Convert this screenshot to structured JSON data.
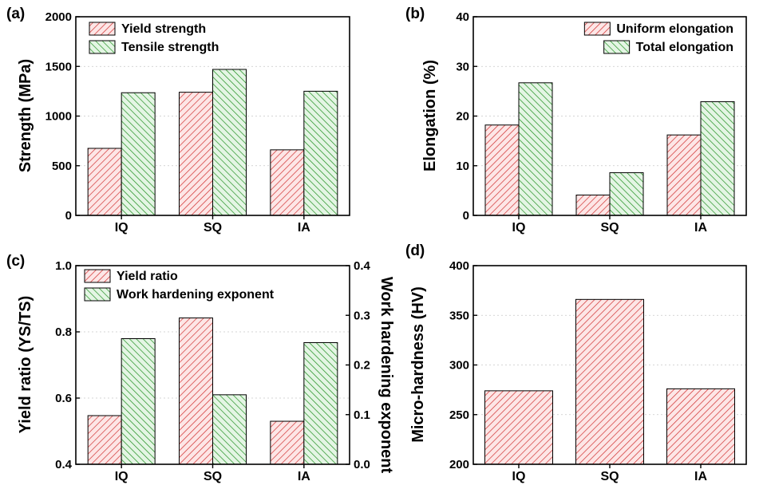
{
  "colors": {
    "red_hatch": "#d03030",
    "red_fill": "#fde6e6",
    "green_hatch": "#1f8f1f",
    "green_fill": "#e4f5e4",
    "grid": "#c8c8c8",
    "axis": "#000000"
  },
  "chart_data": [
    {
      "panel_label": "(a)",
      "type": "bar",
      "categories": [
        "IQ",
        "SQ",
        "IA"
      ],
      "ylabel": "Strength (MPa)",
      "ylim": [
        0,
        2000
      ],
      "yticks": [
        0,
        500,
        1000,
        1500,
        2000
      ],
      "ytick_labels": [
        "0",
        "500",
        "1000",
        "1500",
        "2000"
      ],
      "grid": true,
      "legend_position": "top-left",
      "series": [
        {
          "name": "Yield strength",
          "color": "red",
          "values": [
            675,
            1240,
            660
          ]
        },
        {
          "name": "Tensile strength",
          "color": "green",
          "values": [
            1235,
            1470,
            1250
          ]
        }
      ]
    },
    {
      "panel_label": "(b)",
      "type": "bar",
      "categories": [
        "IQ",
        "SQ",
        "IA"
      ],
      "ylabel": "Elongation (%)",
      "ylim": [
        0,
        40
      ],
      "yticks": [
        0,
        10,
        20,
        30,
        40
      ],
      "ytick_labels": [
        "0",
        "10",
        "20",
        "30",
        "40"
      ],
      "grid": true,
      "legend_position": "top-right",
      "series": [
        {
          "name": "Uniform elongation",
          "color": "red",
          "values": [
            18.2,
            4.1,
            16.2
          ]
        },
        {
          "name": "Total elongation",
          "color": "green",
          "values": [
            26.7,
            8.6,
            22.9
          ]
        }
      ]
    },
    {
      "panel_label": "(c)",
      "type": "bar",
      "categories": [
        "IQ",
        "SQ",
        "IA"
      ],
      "ylabel": "Yield ratio (YS/TS)",
      "ylim": [
        0.4,
        1.0
      ],
      "yticks": [
        0.4,
        0.6,
        0.8,
        1.0
      ],
      "ytick_labels": [
        "0.4",
        "0.6",
        "0.8",
        "1.0"
      ],
      "y2label": "Work hardening exponent",
      "y2lim": [
        0.0,
        0.4
      ],
      "y2ticks": [
        0.0,
        0.1,
        0.2,
        0.3,
        0.4
      ],
      "y2tick_labels": [
        "0.0",
        "0.1",
        "0.2",
        "0.3",
        "0.4"
      ],
      "grid": true,
      "legend_position": "top-left",
      "series": [
        {
          "name": "Yield ratio",
          "color": "red",
          "axis": "left",
          "values": [
            0.547,
            0.842,
            0.53
          ]
        },
        {
          "name": "Work hardening exponent",
          "color": "green",
          "axis": "right",
          "values": [
            0.253,
            0.14,
            0.245
          ]
        }
      ]
    },
    {
      "panel_label": "(d)",
      "type": "bar",
      "categories": [
        "IQ",
        "SQ",
        "IA"
      ],
      "ylabel": "Micro-hardness (HV)",
      "ylim": [
        200,
        400
      ],
      "yticks": [
        200,
        250,
        300,
        350,
        400
      ],
      "ytick_labels": [
        "200",
        "250",
        "300",
        "350",
        "400"
      ],
      "grid": true,
      "series": [
        {
          "name": "",
          "color": "red",
          "values": [
            274,
            366,
            276
          ]
        }
      ]
    }
  ]
}
